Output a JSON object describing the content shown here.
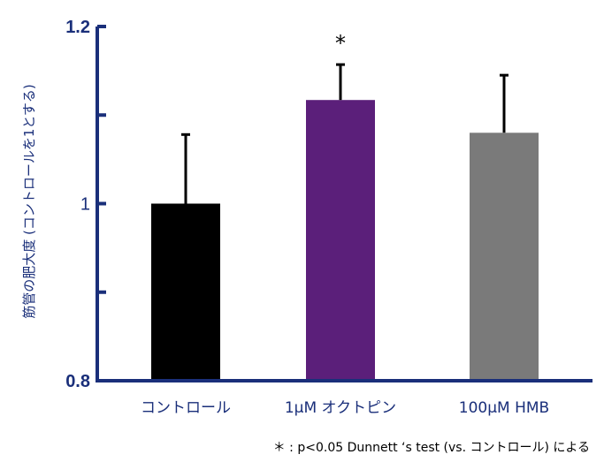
{
  "chart_data": {
    "type": "bar",
    "categories": [
      "コントロール",
      "1μM オクトピン",
      "100μM HMB"
    ],
    "values": [
      1.0,
      1.117,
      1.08
    ],
    "errors": [
      0.078,
      0.04,
      0.065
    ],
    "colors": [
      "#000000",
      "#5b1f7a",
      "#7a7a7a"
    ],
    "annotations": [
      "",
      "*",
      ""
    ],
    "ylabel": "筋管の肥大度 (コントロールを1とする)",
    "ylim": [
      0.8,
      1.2
    ],
    "yticks": [
      0.8,
      0.9,
      1.0,
      1.1,
      1.2
    ],
    "ytick_labels": [
      "0.8",
      "",
      "1",
      "",
      "1.2"
    ],
    "footnote": "＊ : p<0.05 Dunnett ‘s test (vs. コントロール) による",
    "axis_color": "#1a2f7a"
  }
}
